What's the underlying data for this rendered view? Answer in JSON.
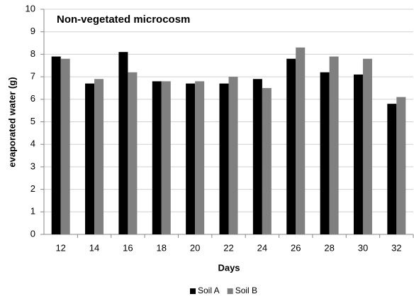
{
  "chart_data": {
    "type": "bar",
    "title": "Non-vegetated microcosm",
    "x_label": "Days",
    "y_label": "evaporated water (g)",
    "categories": [
      "12",
      "14",
      "16",
      "18",
      "20",
      "22",
      "24",
      "26",
      "28",
      "30",
      "32"
    ],
    "series": [
      {
        "name": "Soil A",
        "color": "#000000",
        "values": [
          7.9,
          6.7,
          8.1,
          6.8,
          6.7,
          6.7,
          6.9,
          7.8,
          7.2,
          7.1,
          5.8
        ]
      },
      {
        "name": "Soil B",
        "color": "#808080",
        "values": [
          7.8,
          6.9,
          7.2,
          6.8,
          6.8,
          7.0,
          6.5,
          8.3,
          7.9,
          7.8,
          6.1
        ]
      }
    ],
    "ylim": [
      0,
      10
    ],
    "yticks": [
      0,
      1,
      2,
      3,
      4,
      5,
      6,
      7,
      8,
      9,
      10
    ],
    "grid": true,
    "legend": "bottom"
  }
}
